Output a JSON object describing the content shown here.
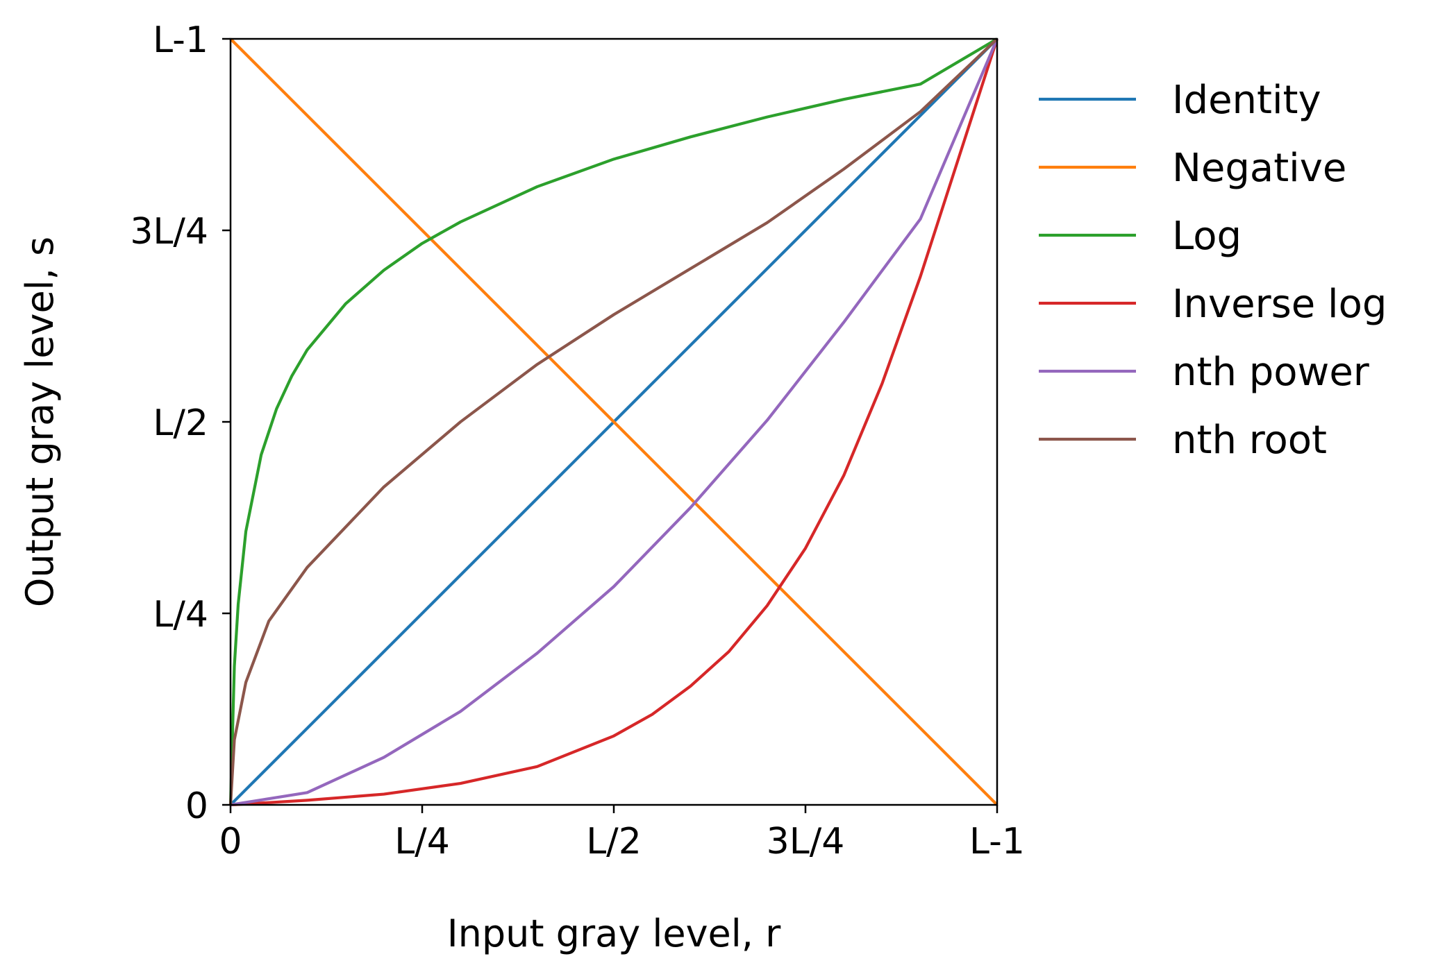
{
  "chart_data": {
    "type": "line",
    "title": "",
    "xlabel": "Input gray level, r",
    "ylabel": "Output gray level, s",
    "xlim": [
      0,
      1
    ],
    "ylim": [
      0,
      1
    ],
    "x_ticks": [
      {
        "value": 0,
        "label": "0"
      },
      {
        "value": 0.25,
        "label": "L/4"
      },
      {
        "value": 0.5,
        "label": "L/2"
      },
      {
        "value": 0.75,
        "label": "3L/4"
      },
      {
        "value": 1,
        "label": "L-1"
      }
    ],
    "y_ticks": [
      {
        "value": 0,
        "label": "0"
      },
      {
        "value": 0.25,
        "label": "L/4"
      },
      {
        "value": 0.5,
        "label": "L/2"
      },
      {
        "value": 0.75,
        "label": "3L/4"
      },
      {
        "value": 1,
        "label": "L-1"
      }
    ],
    "grid": false,
    "legend_position": "outside-right",
    "series": [
      {
        "name": "Identity",
        "color": "#1f77b4",
        "x": [
          0,
          1
        ],
        "y": [
          0,
          1
        ]
      },
      {
        "name": "Negative",
        "color": "#ff7f0e",
        "x": [
          0,
          1
        ],
        "y": [
          1,
          0
        ]
      },
      {
        "name": "Log",
        "color": "#2ca02c",
        "x": [
          0,
          0.005,
          0.01,
          0.02,
          0.04,
          0.06,
          0.08,
          0.1,
          0.15,
          0.2,
          0.25,
          0.3,
          0.4,
          0.5,
          0.6,
          0.7,
          0.8,
          0.9,
          1.0
        ],
        "y": [
          0,
          0.181,
          0.262,
          0.357,
          0.457,
          0.517,
          0.56,
          0.594,
          0.654,
          0.698,
          0.733,
          0.761,
          0.807,
          0.843,
          0.872,
          0.898,
          0.921,
          0.941,
          1.0
        ]
      },
      {
        "name": "Inverse log",
        "color": "#d62728",
        "x": [
          0,
          0.1,
          0.2,
          0.3,
          0.4,
          0.5,
          0.55,
          0.6,
          0.65,
          0.7,
          0.75,
          0.8,
          0.85,
          0.9,
          0.95,
          1.0
        ],
        "y": [
          0,
          0.006,
          0.014,
          0.028,
          0.05,
          0.09,
          0.118,
          0.155,
          0.2,
          0.26,
          0.335,
          0.43,
          0.55,
          0.69,
          0.845,
          1.0
        ]
      },
      {
        "name": "nth power",
        "color": "#9467bd",
        "x": [
          0,
          0.1,
          0.2,
          0.3,
          0.4,
          0.5,
          0.6,
          0.7,
          0.8,
          0.9,
          1.0
        ],
        "y": [
          0,
          0.016,
          0.062,
          0.122,
          0.198,
          0.285,
          0.388,
          0.502,
          0.63,
          0.765,
          1.0
        ]
      },
      {
        "name": "nth root",
        "color": "#8c564b",
        "x": [
          0,
          0.005,
          0.02,
          0.05,
          0.1,
          0.2,
          0.3,
          0.4,
          0.5,
          0.6,
          0.7,
          0.8,
          0.9,
          1.0
        ],
        "y": [
          0,
          0.085,
          0.16,
          0.24,
          0.31,
          0.415,
          0.5,
          0.575,
          0.64,
          0.7,
          0.76,
          0.83,
          0.905,
          1.0
        ]
      }
    ]
  }
}
